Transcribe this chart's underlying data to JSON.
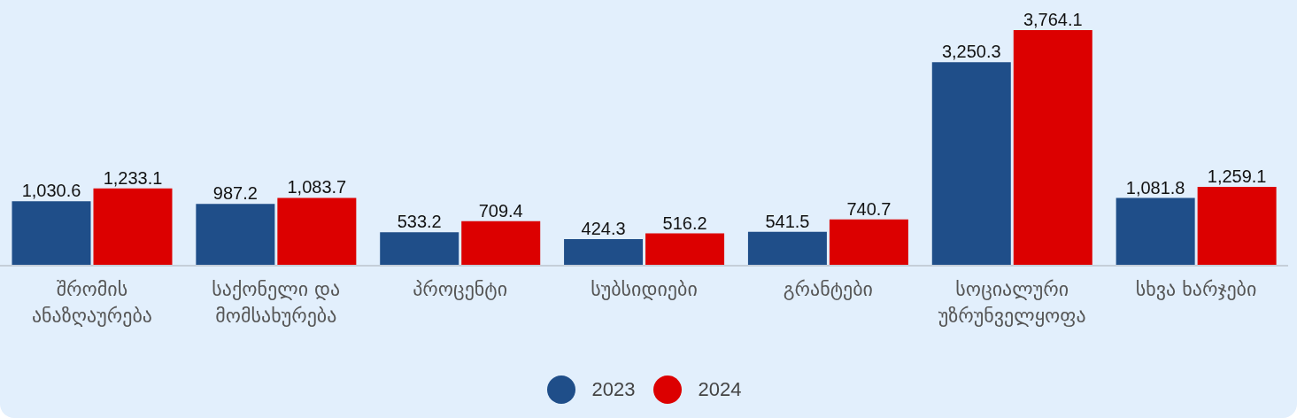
{
  "chart_data": {
    "type": "bar",
    "categories": [
      "შრომის ანაზღაურება",
      "საქონელი და მომსახურება",
      "პროცენტი",
      "სუბსიდიები",
      "გრანტები",
      "სოციალური უზრუნველყოფა",
      "სხვა ხარჯები"
    ],
    "series": [
      {
        "name": "2023",
        "color": "#1f4e89",
        "values": [
          1030.6,
          987.2,
          533.2,
          424.3,
          541.5,
          3250.3,
          1081.8
        ],
        "value_labels": [
          "1,030.6",
          "987.2",
          "533.2",
          "424.3",
          "541.5",
          "3,250.3",
          "1,081.8"
        ]
      },
      {
        "name": "2024",
        "color": "#dc0000",
        "values": [
          1233.1,
          1083.7,
          709.4,
          516.2,
          740.7,
          3764.1,
          1259.1
        ],
        "value_labels": [
          "1,233.1",
          "1,083.7",
          "709.4",
          "516.2",
          "740.7",
          "3,764.1",
          "1,259.1"
        ]
      }
    ],
    "legend": "bottom",
    "tick_labels": "x"
  }
}
